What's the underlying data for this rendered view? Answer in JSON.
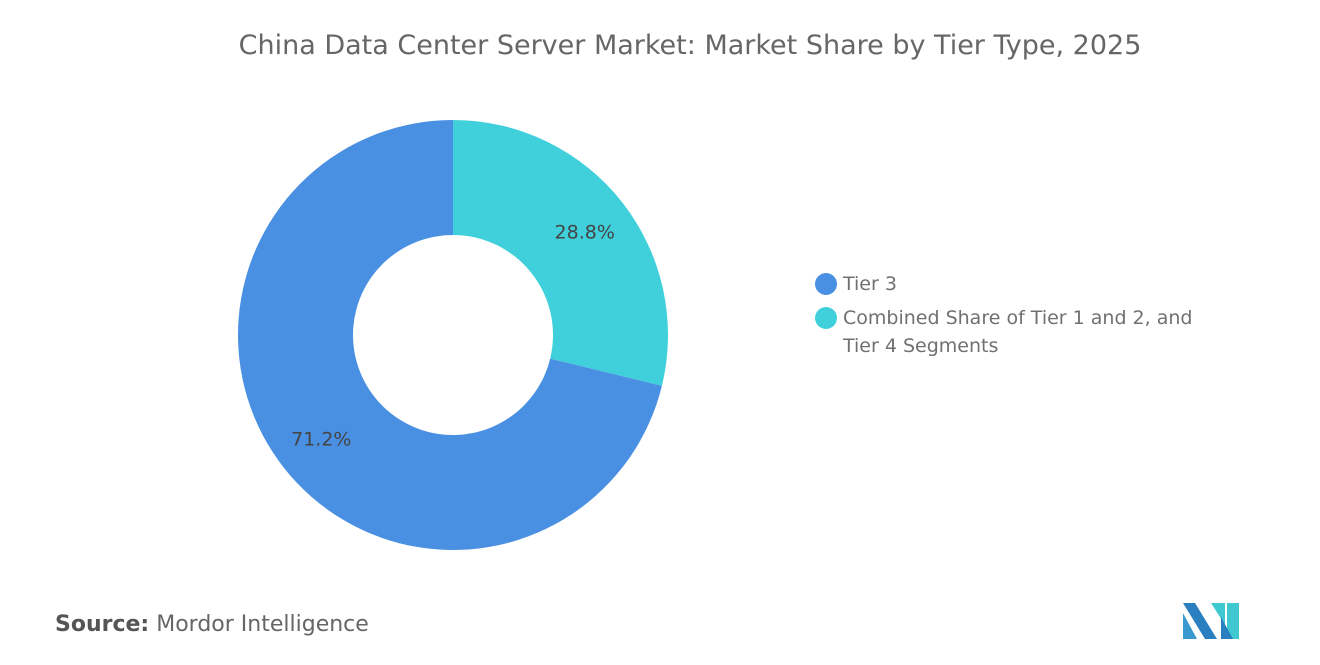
{
  "chart_data": {
    "type": "pie",
    "variant": "donut",
    "title": "China Data Center Server Market: Market Share by Tier Type, 2025",
    "categories": [
      "Tier 3",
      "Combined Share of Tier 1 and 2, and Tier 4 Segments"
    ],
    "values": [
      71.2,
      28.8
    ],
    "labels": [
      "71.2%",
      "28.8%"
    ],
    "colors": [
      "#4a90e2",
      "#40d0dc"
    ],
    "legend": "right"
  },
  "source": {
    "label": "Source:",
    "value": "Mordor Intelligence"
  }
}
